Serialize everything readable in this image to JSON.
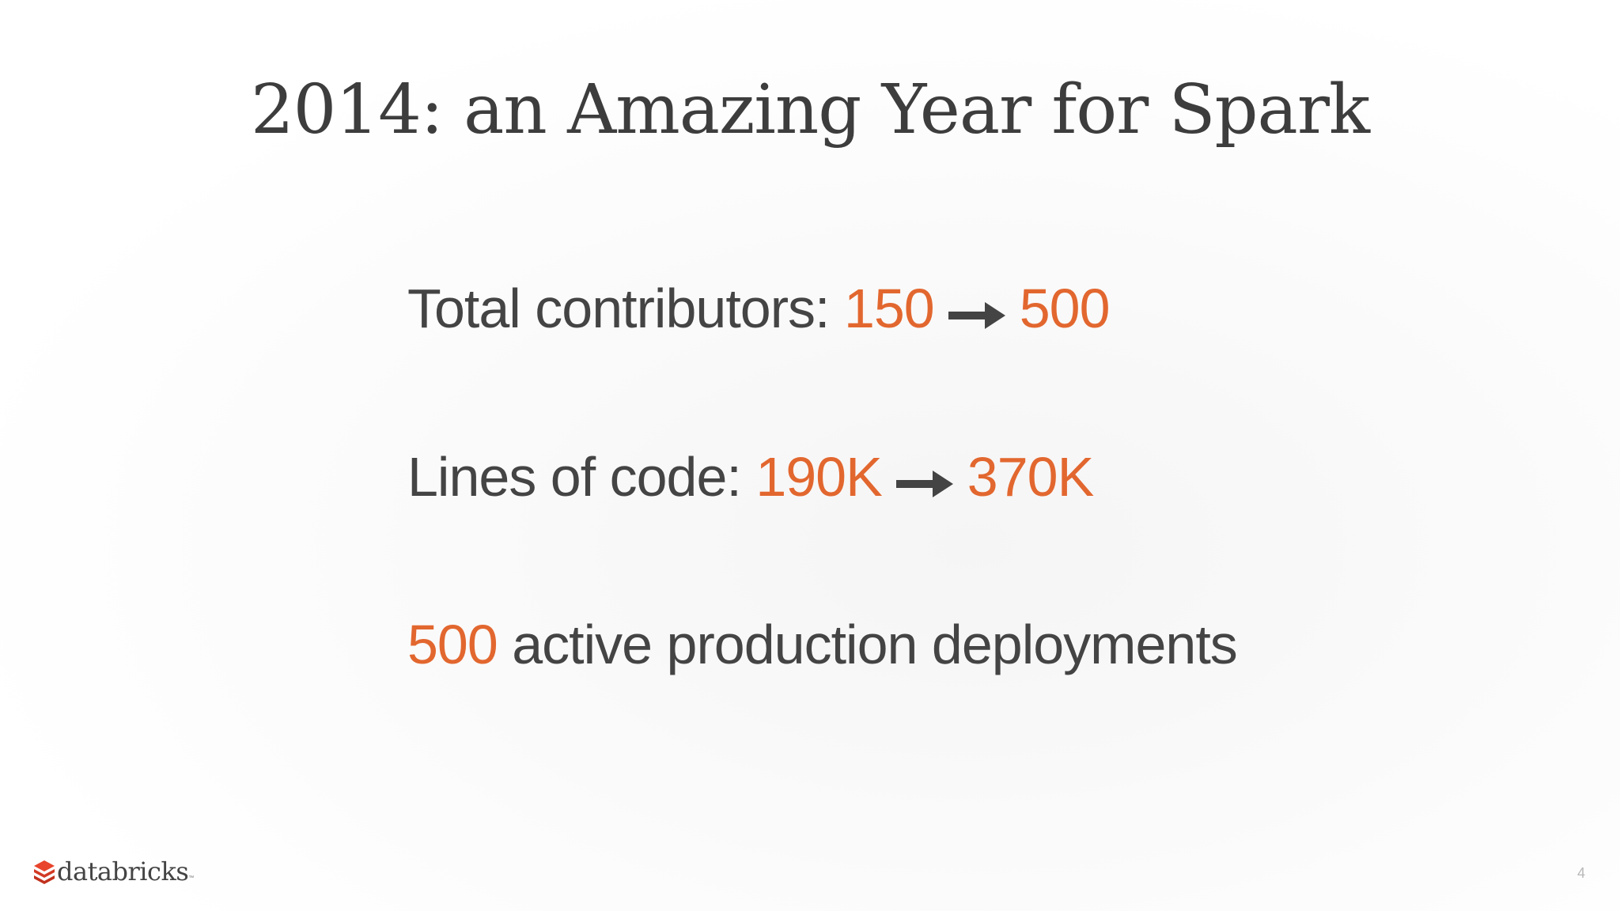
{
  "slide": {
    "title": "2014: an Amazing Year for Spark",
    "page_number": "4"
  },
  "stats": [
    {
      "label": "Total contributors:",
      "from": "150",
      "to": "500"
    },
    {
      "label": "Lines of code:",
      "from": "190K",
      "to": "370K"
    }
  ],
  "deployments": {
    "value": "500",
    "label": "active production deployments"
  },
  "logo": {
    "name": "databricks",
    "trademark": "™"
  },
  "colors": {
    "highlight": "#e2672f",
    "text": "#444444",
    "logo_mark": "#e8452c"
  },
  "icons": {
    "arrow": "right-arrow-icon",
    "logo": "databricks-logo-icon"
  }
}
